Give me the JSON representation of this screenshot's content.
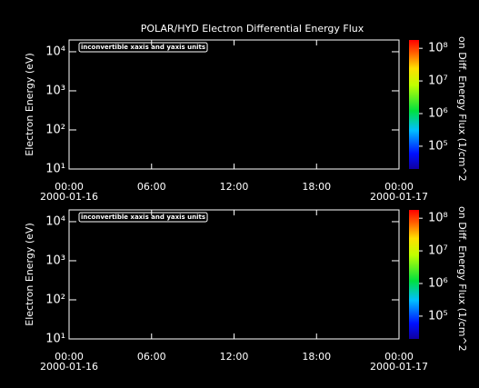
{
  "chart_data": [
    {
      "type": "spectrogram",
      "title": "POLAR/HYD  Electron Differential Energy Flux",
      "y_label": "Electron Energy (eV)",
      "annotation": "inconvertible xaxis and yaxis units",
      "xlim": [
        0,
        24
      ],
      "xticks": [
        {
          "value": 0,
          "label": "00:00"
        },
        {
          "value": 6,
          "label": "06:00"
        },
        {
          "value": 12,
          "label": "12:00"
        },
        {
          "value": 18,
          "label": "18:00"
        },
        {
          "value": 24,
          "label": "00:00"
        }
      ],
      "x_date_labels": [
        {
          "value": 0,
          "label": "2000-01-16"
        },
        {
          "value": 24,
          "label": "2000-01-17"
        }
      ],
      "y_log": true,
      "ylim": [
        10,
        20000
      ],
      "yticks": [
        {
          "value": 10,
          "label": "10¹"
        },
        {
          "value": 100,
          "label": "10²"
        },
        {
          "value": 1000,
          "label": "10³"
        },
        {
          "value": 10000,
          "label": "10⁴"
        }
      ],
      "colorbar_label": "on Diff. Energy Flux (1/cm^2",
      "zlim": [
        20000,
        180000000
      ],
      "zticks": [
        {
          "value": 100000,
          "label": "10⁵"
        },
        {
          "value": 1000000,
          "label": "10⁶"
        },
        {
          "value": 10000000,
          "label": "10⁷"
        },
        {
          "value": 100000000,
          "label": "10⁸"
        }
      ]
    },
    {
      "type": "spectrogram",
      "y_label": "Electron Energy (eV)",
      "annotation": "inconvertible xaxis and yaxis units",
      "xlim": [
        0,
        24
      ],
      "xticks": [
        {
          "value": 0,
          "label": "00:00"
        },
        {
          "value": 6,
          "label": "06:00"
        },
        {
          "value": 12,
          "label": "12:00"
        },
        {
          "value": 18,
          "label": "18:00"
        },
        {
          "value": 24,
          "label": "00:00"
        }
      ],
      "x_date_labels": [
        {
          "value": 0,
          "label": "2000-01-16"
        },
        {
          "value": 24,
          "label": "2000-01-17"
        }
      ],
      "y_log": true,
      "ylim": [
        10,
        20000
      ],
      "yticks": [
        {
          "value": 10,
          "label": "10¹"
        },
        {
          "value": 100,
          "label": "10²"
        },
        {
          "value": 1000,
          "label": "10³"
        },
        {
          "value": 10000,
          "label": "10⁴"
        }
      ],
      "colorbar_label": "on Diff. Energy Flux (1/cm^2",
      "zlim": [
        20000,
        180000000
      ],
      "zticks": [
        {
          "value": 100000,
          "label": "10⁵"
        },
        {
          "value": 1000000,
          "label": "10⁶"
        },
        {
          "value": 10000000,
          "label": "10⁷"
        },
        {
          "value": 100000000,
          "label": "10⁸"
        }
      ]
    }
  ]
}
